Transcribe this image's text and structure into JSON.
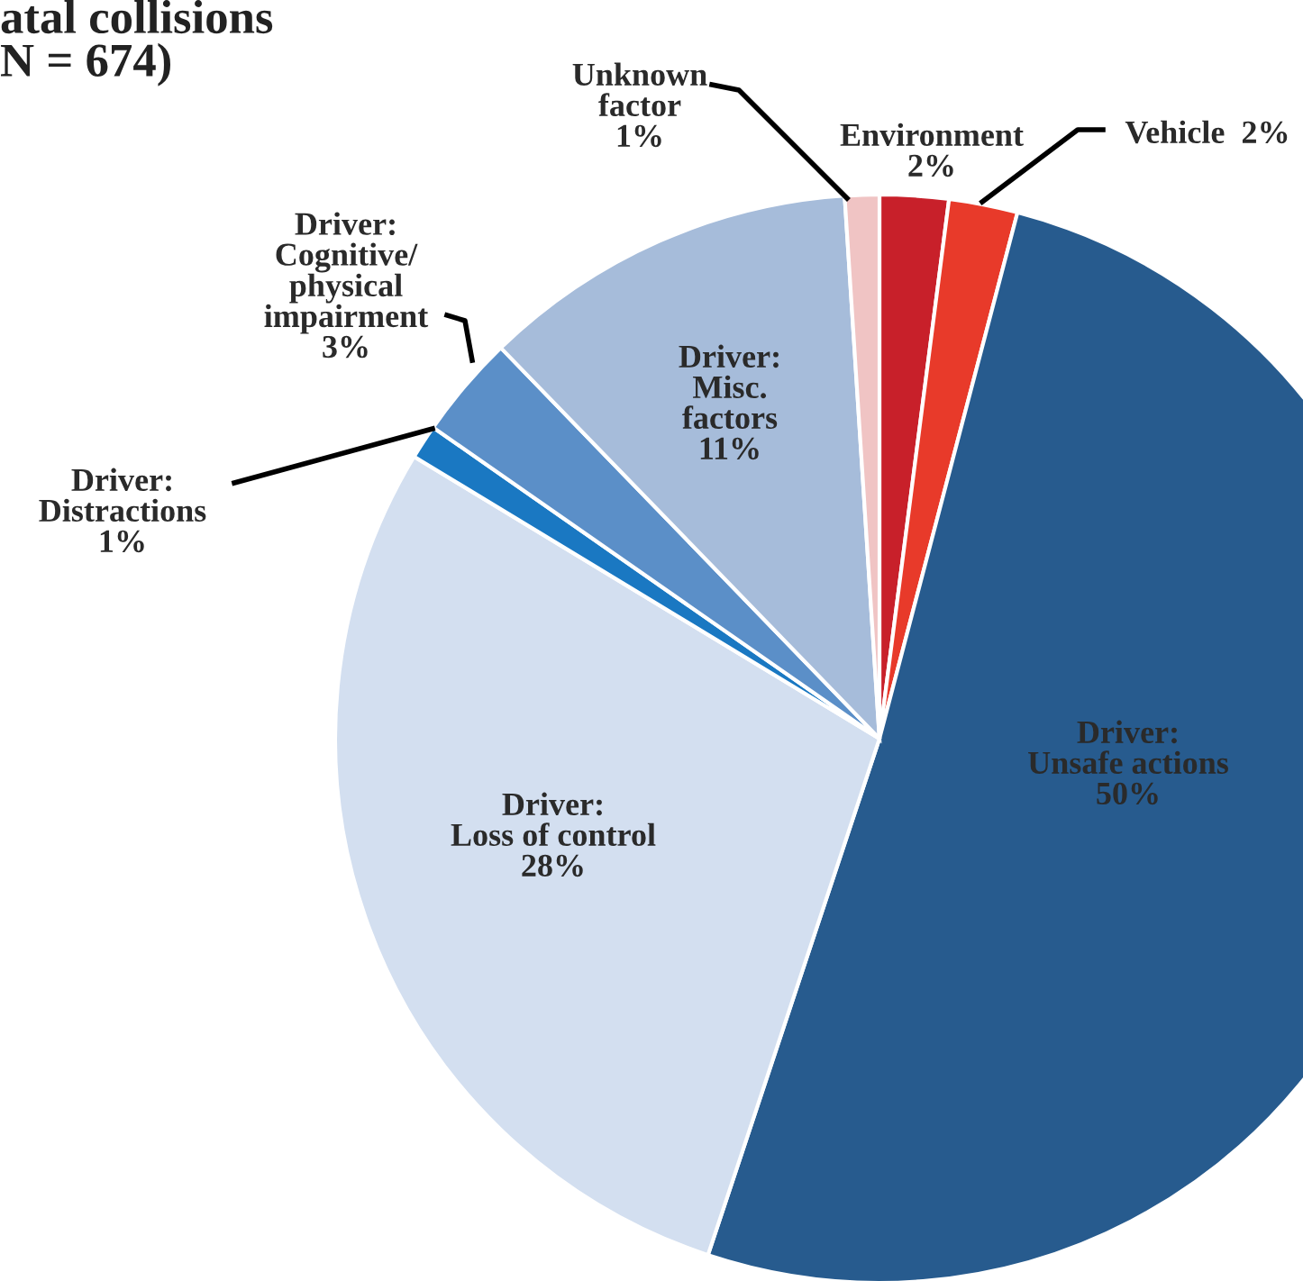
{
  "chart_data": {
    "type": "pie",
    "title": "atal collisions\nN = 674)",
    "categories": [
      "Environment",
      "Vehicle",
      "Driver:\nUnsafe actions",
      "Driver:\nLoss of control",
      "Driver:\nDistractions",
      "Driver:\nCognitive/\nphysical\nimpairment",
      "Driver:\nMisc.\nfactors",
      "Unknown\nfactor"
    ],
    "values": [
      2,
      2,
      50,
      28,
      1,
      3,
      11,
      1
    ],
    "value_labels": [
      "2%",
      "2%",
      "50%",
      "28%",
      "1%",
      "3%",
      "11%",
      "1%"
    ],
    "colors": [
      "#c8202a",
      "#e83a2a",
      "#275b8e",
      "#d3dff0",
      "#1a78c2",
      "#5b8fc8",
      "#a6bcda",
      "#f0c4c4"
    ],
    "legend": false
  }
}
